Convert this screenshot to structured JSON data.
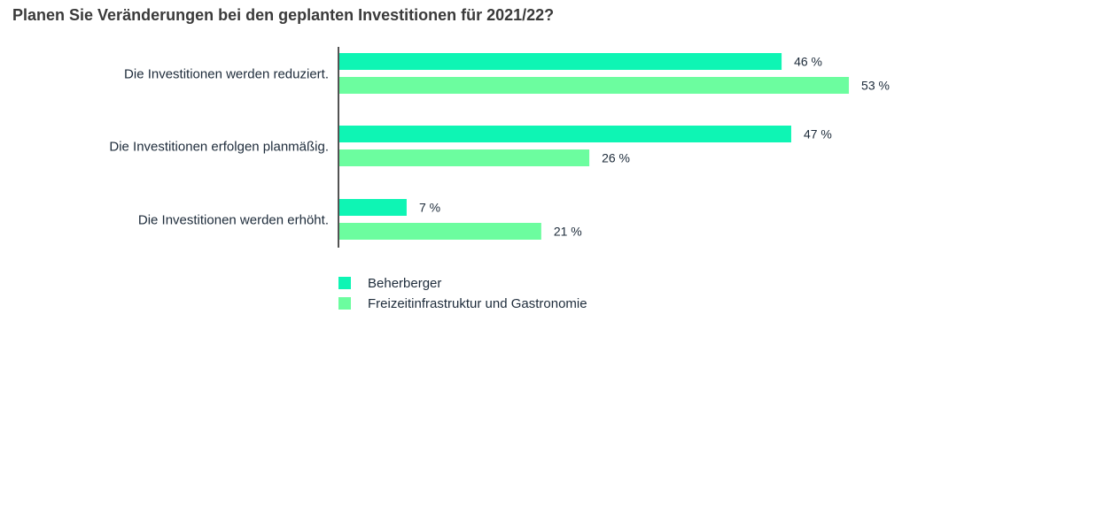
{
  "chart_data": {
    "type": "bar",
    "orientation": "horizontal",
    "title": "Planen Sie Veränderungen bei den geplanten Investitionen für 2021/22?",
    "categories": [
      "Die Investitionen werden reduziert.",
      "Die Investitionen erfolgen planmäßig.",
      "Die Investitionen werden erhöht."
    ],
    "series": [
      {
        "name": "Beherberger",
        "values": [
          46,
          47,
          7
        ],
        "labels": [
          "46 %",
          "47 %",
          "7 %"
        ],
        "color": "#0ef5b4"
      },
      {
        "name": "Freizeitinfrastruktur und Gastronomie",
        "values": [
          53,
          26,
          21
        ],
        "labels": [
          "53 %",
          "26 %",
          "21 %"
        ],
        "color": "#6cfd9f"
      }
    ],
    "xlabel": "",
    "ylabel": "",
    "xlim": [
      0,
      100
    ],
    "grid": false,
    "legend_position": "bottom-left"
  }
}
